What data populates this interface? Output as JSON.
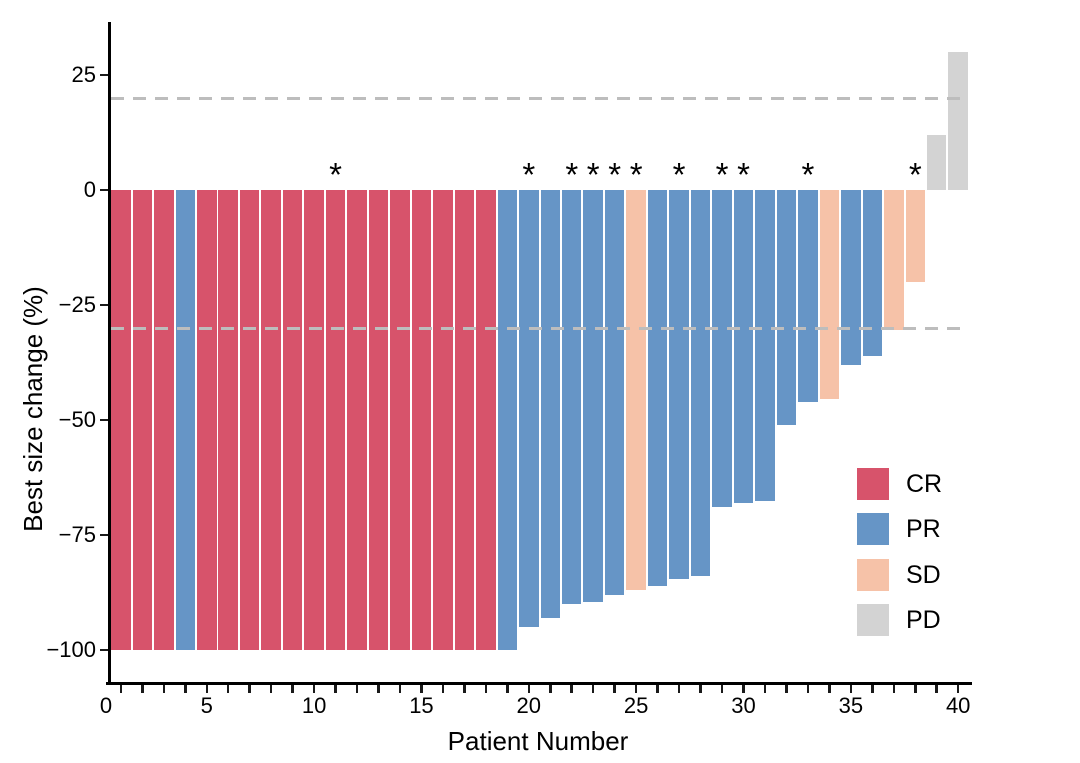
{
  "chart_data": {
    "type": "bar",
    "subtype": "waterfall",
    "title": "",
    "xlabel": "Patient Number",
    "ylabel": "Best size change (%)",
    "x_tick_values": [
      0,
      5,
      10,
      15,
      20,
      25,
      30,
      35,
      40
    ],
    "x_tick_labels": [
      "0",
      "5",
      "10",
      "15",
      "20",
      "25",
      "30",
      "35",
      "40"
    ],
    "x_minor_tick_step": 1,
    "y_tick_values": [
      25,
      0,
      -25,
      -50,
      -75,
      -100
    ],
    "y_tick_labels": [
      "25",
      "0",
      "−25",
      "−50",
      "−75",
      "−100"
    ],
    "xlim": [
      -0.6,
      40.6
    ],
    "ylim": [
      -107,
      38
    ],
    "grid": false,
    "legend_position": "inside-right",
    "reference_lines": [
      {
        "y": 20,
        "style": "dashed",
        "color": "#bdbdbd"
      },
      {
        "y": -30,
        "style": "dashed",
        "color": "#bdbdbd"
      }
    ],
    "groups": [
      {
        "name": "CR",
        "color": "#d7536b"
      },
      {
        "name": "PR",
        "color": "#6695c6"
      },
      {
        "name": "SD",
        "color": "#f6c2a8"
      },
      {
        "name": "PD",
        "color": "#d3d3d3"
      }
    ],
    "star_marker": "*",
    "starred_patients": [
      11,
      20,
      22,
      23,
      24,
      25,
      27,
      29,
      30,
      33,
      38
    ],
    "patients": [
      {
        "patient": 1,
        "change": -100,
        "group": "CR",
        "star": false
      },
      {
        "patient": 2,
        "change": -100,
        "group": "CR",
        "star": false
      },
      {
        "patient": 3,
        "change": -100,
        "group": "CR",
        "star": false
      },
      {
        "patient": 4,
        "change": -100,
        "group": "PR",
        "star": false
      },
      {
        "patient": 5,
        "change": -100,
        "group": "CR",
        "star": false
      },
      {
        "patient": 6,
        "change": -100,
        "group": "CR",
        "star": false
      },
      {
        "patient": 7,
        "change": -100,
        "group": "CR",
        "star": false
      },
      {
        "patient": 8,
        "change": -100,
        "group": "CR",
        "star": false
      },
      {
        "patient": 9,
        "change": -100,
        "group": "CR",
        "star": false
      },
      {
        "patient": 10,
        "change": -100,
        "group": "CR",
        "star": false
      },
      {
        "patient": 11,
        "change": -100,
        "group": "CR",
        "star": true
      },
      {
        "patient": 12,
        "change": -100,
        "group": "CR",
        "star": false
      },
      {
        "patient": 13,
        "change": -100,
        "group": "CR",
        "star": false
      },
      {
        "patient": 14,
        "change": -100,
        "group": "CR",
        "star": false
      },
      {
        "patient": 15,
        "change": -100,
        "group": "CR",
        "star": false
      },
      {
        "patient": 16,
        "change": -100,
        "group": "CR",
        "star": false
      },
      {
        "patient": 17,
        "change": -100,
        "group": "CR",
        "star": false
      },
      {
        "patient": 18,
        "change": -100,
        "group": "CR",
        "star": false
      },
      {
        "patient": 19,
        "change": -100,
        "group": "PR",
        "star": false
      },
      {
        "patient": 20,
        "change": -95,
        "group": "PR",
        "star": true
      },
      {
        "patient": 21,
        "change": -93,
        "group": "PR",
        "star": false
      },
      {
        "patient": 22,
        "change": -90,
        "group": "PR",
        "star": true
      },
      {
        "patient": 23,
        "change": -89.5,
        "group": "PR",
        "star": true
      },
      {
        "patient": 24,
        "change": -88,
        "group": "PR",
        "star": true
      },
      {
        "patient": 25,
        "change": -87,
        "group": "SD",
        "star": true
      },
      {
        "patient": 26,
        "change": -86,
        "group": "PR",
        "star": false
      },
      {
        "patient": 27,
        "change": -84.5,
        "group": "PR",
        "star": true
      },
      {
        "patient": 28,
        "change": -84,
        "group": "PR",
        "star": false
      },
      {
        "patient": 29,
        "change": -69,
        "group": "PR",
        "star": true
      },
      {
        "patient": 30,
        "change": -68,
        "group": "PR",
        "star": true
      },
      {
        "patient": 31,
        "change": -67.5,
        "group": "PR",
        "star": false
      },
      {
        "patient": 32,
        "change": -51,
        "group": "PR",
        "star": false
      },
      {
        "patient": 33,
        "change": -46,
        "group": "PR",
        "star": true
      },
      {
        "patient": 34,
        "change": -45.5,
        "group": "SD",
        "star": false
      },
      {
        "patient": 35,
        "change": -38,
        "group": "PR",
        "star": false
      },
      {
        "patient": 36,
        "change": -36,
        "group": "PR",
        "star": false
      },
      {
        "patient": 37,
        "change": -30.5,
        "group": "SD",
        "star": false
      },
      {
        "patient": 38,
        "change": -20,
        "group": "SD",
        "star": true
      },
      {
        "patient": 39,
        "change": 12,
        "group": "PD",
        "star": false
      },
      {
        "patient": 40,
        "change": 30,
        "group": "PD",
        "star": false
      }
    ]
  }
}
